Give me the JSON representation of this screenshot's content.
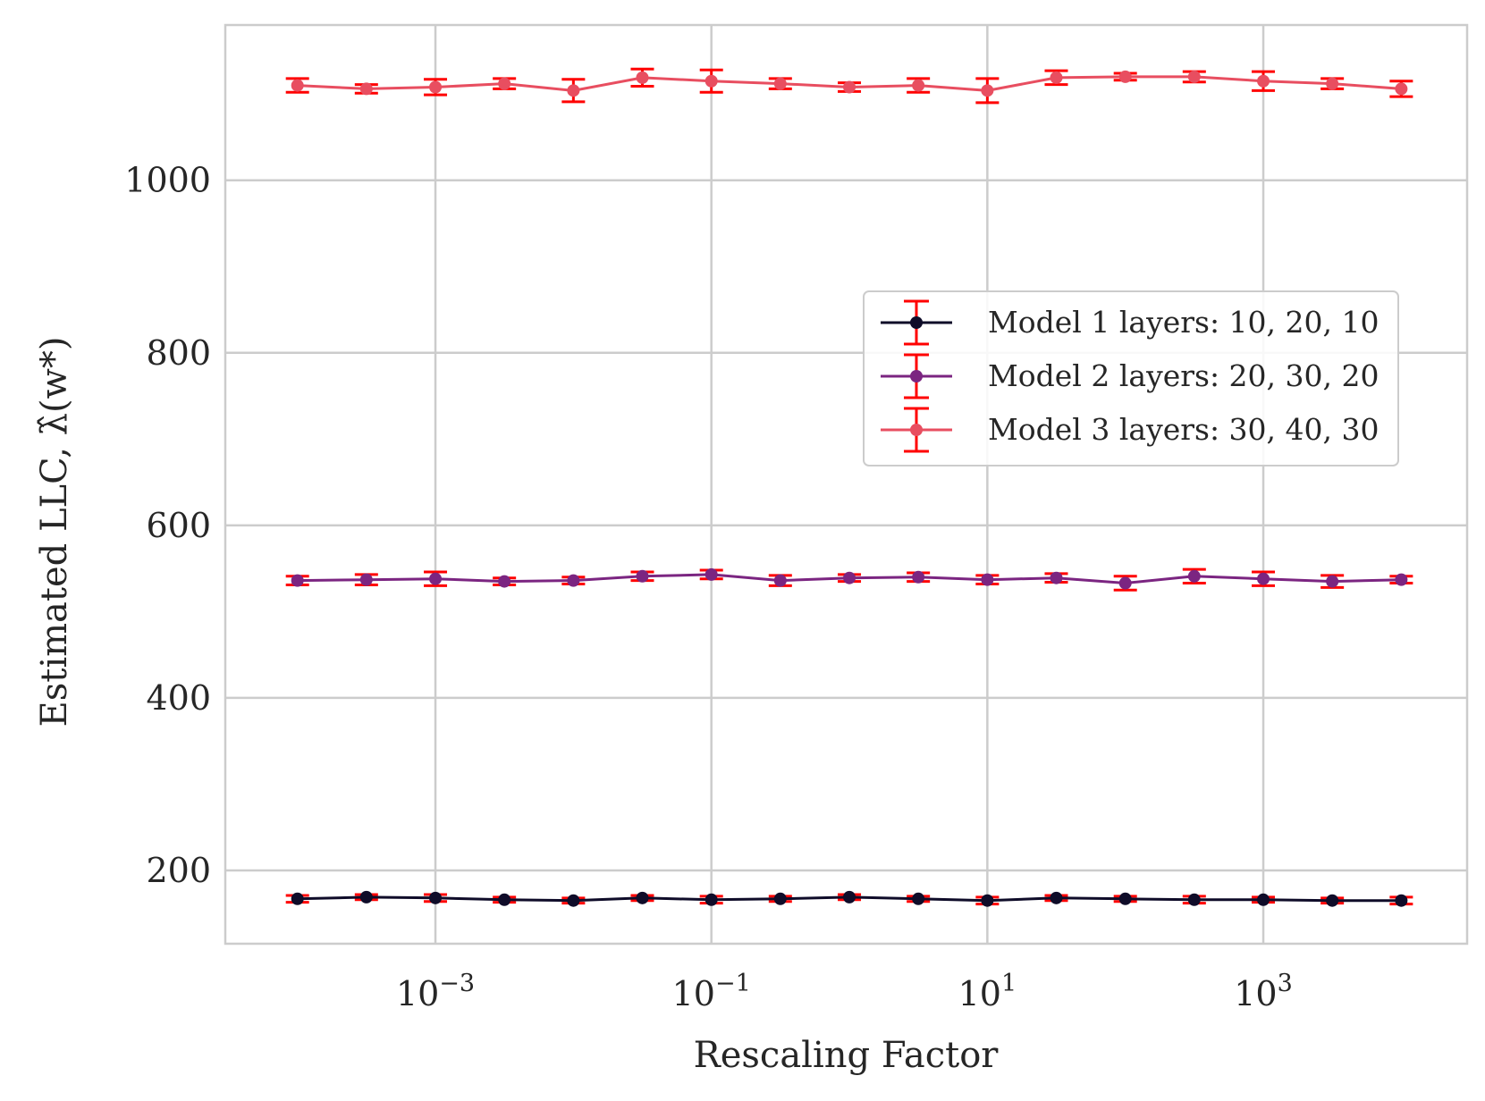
{
  "chart_data": {
    "type": "line",
    "title": "",
    "xlabel": "Rescaling Factor",
    "ylabel": "Estimated LLC, λ̂(w*)",
    "xscale": "log",
    "xlim": [
      3e-05,
      30000
    ],
    "ylim": [
      115,
      1180
    ],
    "grid": true,
    "legend_position": "center-right",
    "x_ticks": [
      {
        "value": 0.001,
        "base": "10",
        "exp": "−3"
      },
      {
        "value": 0.1,
        "base": "10",
        "exp": "−1"
      },
      {
        "value": 10,
        "base": "10",
        "exp": "1"
      },
      {
        "value": 1000,
        "base": "10",
        "exp": "3"
      }
    ],
    "y_ticks": [
      200,
      400,
      600,
      800,
      1000
    ],
    "x": [
      0.0001,
      0.000316,
      0.001,
      0.00316,
      0.01,
      0.0316,
      0.1,
      0.316,
      1,
      3.16,
      10,
      31.6,
      100,
      316,
      1000,
      3160,
      10000
    ],
    "error_bar_color": "#ff0000",
    "series": [
      {
        "name": "Model 1 layers: 10, 20, 10",
        "color": "#0f0c29",
        "values": [
          167,
          169,
          168,
          166,
          165,
          168,
          166,
          167,
          169,
          167,
          165,
          168,
          167,
          166,
          166,
          165,
          165
        ],
        "errors": [
          4,
          3,
          4,
          3,
          3,
          3,
          4,
          3,
          3,
          3,
          4,
          3,
          3,
          4,
          3,
          3,
          4
        ]
      },
      {
        "name": "Model 2 layers: 20, 30, 20",
        "color": "#7b2581",
        "values": [
          536,
          537,
          538,
          535,
          536,
          541,
          543,
          536,
          539,
          540,
          537,
          539,
          533,
          541,
          538,
          535,
          537
        ],
        "errors": [
          5,
          6,
          8,
          4,
          4,
          5,
          5,
          6,
          4,
          5,
          5,
          5,
          8,
          8,
          8,
          7,
          4
        ]
      },
      {
        "name": "Model 3 layers: 30, 40, 30",
        "color": "#e84e60",
        "values": [
          1110,
          1106,
          1108,
          1112,
          1104,
          1119,
          1115,
          1112,
          1108,
          1110,
          1104,
          1119,
          1120,
          1120,
          1115,
          1112,
          1106
        ],
        "errors": [
          8,
          5,
          9,
          6,
          13,
          10,
          13,
          6,
          5,
          8,
          14,
          8,
          4,
          6,
          11,
          6,
          9
        ]
      }
    ]
  }
}
